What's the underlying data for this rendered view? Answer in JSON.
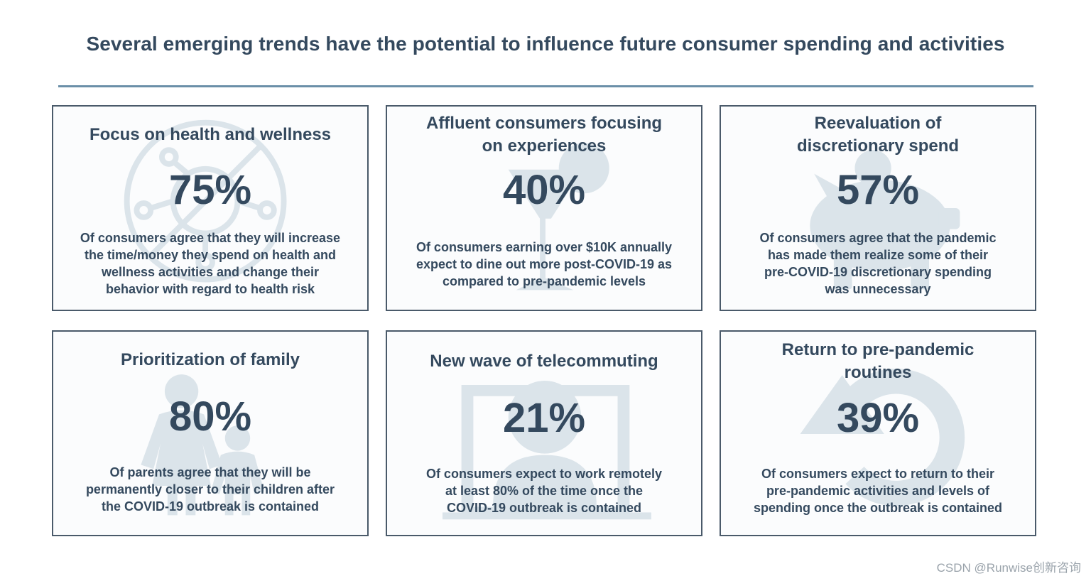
{
  "title": "Several emerging trends have the potential to influence future consumer spending and activities",
  "cards": [
    {
      "heading": "Focus on health and wellness",
      "stat": "75%",
      "description": "Of consumers agree that they will increase\nthe time/money they spend on health and\nwellness activities and change their\nbehavior with regard to health risk",
      "icon": "virus-prohibited-icon"
    },
    {
      "heading": "Affluent consumers focusing\non experiences",
      "stat": "40%",
      "description": "Of consumers earning over $10K annually\nexpect to dine out more post-COVID-19 as\ncompared to pre-pandemic levels",
      "icon": "cocktail-glass-icon"
    },
    {
      "heading": "Reevaluation of\ndiscretionary spend",
      "stat": "57%",
      "description": "Of consumers agree that the pandemic\nhas made them realize some of their\npre-COVID-19 discretionary spending\nwas unnecessary",
      "icon": "piggy-bank-icon"
    },
    {
      "heading": "Prioritization of family",
      "stat": "80%",
      "description": "Of parents agree that they will be\npermanently closer to their children after\nthe COVID-19 outbreak is contained",
      "icon": "parent-child-icon"
    },
    {
      "heading": "New wave of telecommuting",
      "stat": "21%",
      "description": "Of consumers expect to work remotely\nat least 80% of the time once the\nCOVID-19 outbreak is contained",
      "icon": "laptop-user-icon"
    },
    {
      "heading": "Return to pre-pandemic\nroutines",
      "stat": "39%",
      "description": "Of consumers expect to return to their\npre-pandemic activities and levels of\nspending once the outbreak is contained",
      "icon": "circular-arrow-icon"
    }
  ],
  "watermark": "CSDN @Runwise创新咨询",
  "colors": {
    "text": "#34495e",
    "rule": "#6b8fa8",
    "icon": "#dbe4ea",
    "border": "#4a5a6a"
  }
}
